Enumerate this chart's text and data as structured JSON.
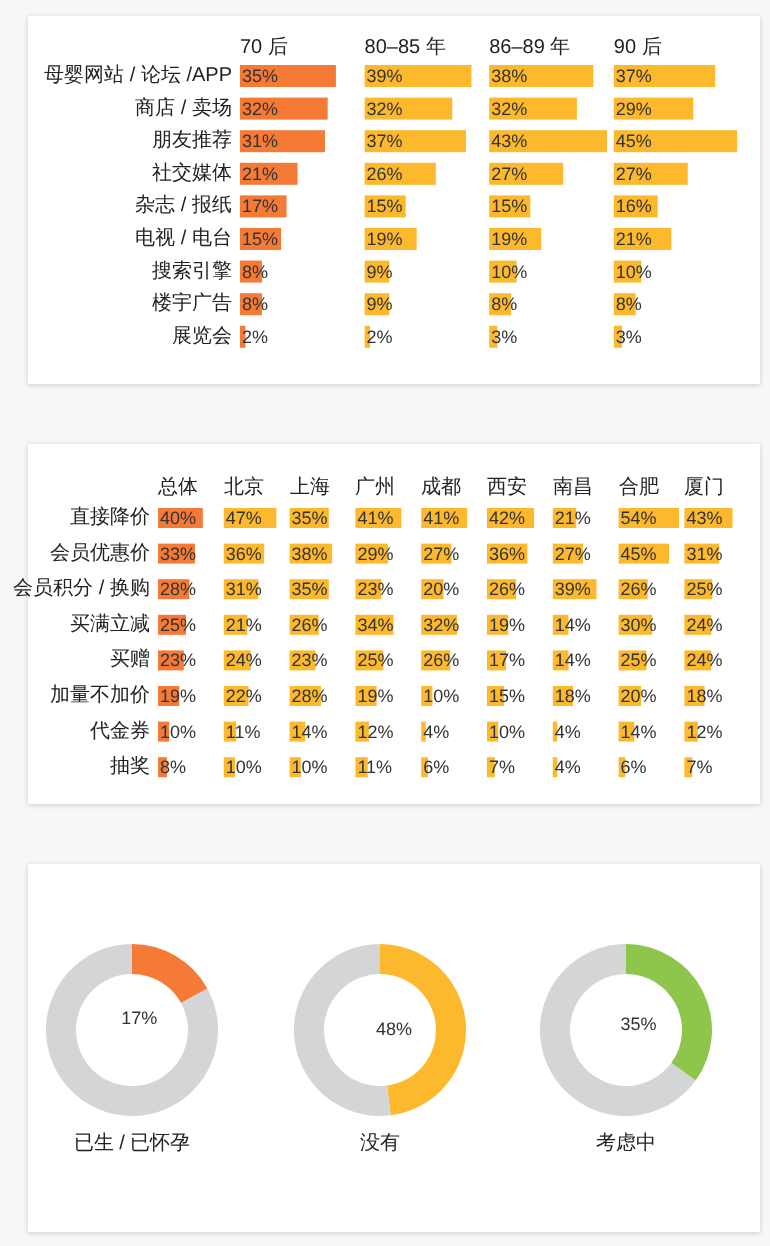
{
  "chart_data": [
    {
      "type": "bar",
      "orientation": "horizontal",
      "tick_labels": "y",
      "title": "70 后",
      "categories": [
        "母婴网站 / 论坛 /APP",
        "商店 / 卖场",
        "朋友推荐",
        "社交媒体",
        "杂志 / 报纸",
        "电视 / 电台",
        "搜索引擎",
        "楼宇广告",
        "展览会"
      ],
      "color": "#f47a35",
      "values": [
        35,
        32,
        31,
        21,
        17,
        15,
        8,
        8,
        2
      ],
      "value_labels": [
        "35%",
        "32%",
        "31%",
        "21%",
        "17%",
        "15%",
        "8%",
        "8%",
        "2%"
      ]
    },
    {
      "type": "bar",
      "orientation": "horizontal",
      "tick_labels": false,
      "title": "80–85 年",
      "categories": [
        null,
        null,
        null,
        null,
        null,
        null,
        null,
        null,
        null
      ],
      "color": "#fdb92e",
      "values": [
        39,
        32,
        37,
        26,
        15,
        19,
        9,
        9,
        2
      ],
      "value_labels": [
        "39%",
        "32%",
        "37%",
        "26%",
        "15%",
        "19%",
        "9%",
        "9%",
        "2%"
      ]
    },
    {
      "type": "bar",
      "orientation": "horizontal",
      "tick_labels": false,
      "title": "86–89 年",
      "categories": [
        null,
        null,
        null,
        null,
        null,
        null,
        null,
        null,
        null
      ],
      "color": "#fdb92e",
      "values": [
        38,
        32,
        43,
        27,
        15,
        19,
        10,
        8,
        3
      ],
      "value_labels": [
        "38%",
        "32%",
        "43%",
        "27%",
        "15%",
        "19%",
        "10%",
        "8%",
        "3%"
      ]
    },
    {
      "type": "bar",
      "orientation": "horizontal",
      "tick_labels": false,
      "title": "90 后",
      "categories": [
        null,
        null,
        null,
        null,
        null,
        null,
        null,
        null,
        null
      ],
      "color": "#fdb92e",
      "values": [
        37,
        29,
        45,
        27,
        16,
        21,
        10,
        8,
        3
      ],
      "value_labels": [
        "37%",
        "29%",
        "45%",
        "27%",
        "16%",
        "21%",
        "10%",
        "8%",
        "3%"
      ]
    },
    {
      "type": "bar",
      "orientation": "horizontal",
      "tick_labels": "y",
      "title": "总体",
      "categories": [
        "直接降价",
        "会员优惠价",
        "会员积分 / 换购",
        "买满立减",
        "买赠",
        "加量不加价",
        "代金券",
        "抽奖"
      ],
      "color": "#f47a35",
      "values": [
        40,
        33,
        28,
        25,
        23,
        19,
        10,
        8
      ],
      "value_labels": [
        "40%",
        "33%",
        "28%",
        "25%",
        "23%",
        "19%",
        "10%",
        "8%"
      ]
    },
    {
      "type": "bar",
      "orientation": "horizontal",
      "tick_labels": false,
      "title": "北京",
      "categories": [
        null,
        null,
        null,
        null,
        null,
        null,
        null,
        null
      ],
      "color": "#fdb92e",
      "values": [
        47,
        36,
        31,
        21,
        24,
        22,
        11,
        10
      ],
      "value_labels": [
        "47%",
        "36%",
        "31%",
        "21%",
        "24%",
        "22%",
        "11%",
        "10%"
      ]
    },
    {
      "type": "bar",
      "orientation": "horizontal",
      "tick_labels": false,
      "title": "上海",
      "categories": [
        null,
        null,
        null,
        null,
        null,
        null,
        null,
        null
      ],
      "color": "#fdb92e",
      "values": [
        35,
        38,
        35,
        26,
        23,
        28,
        14,
        10
      ],
      "value_labels": [
        "35%",
        "38%",
        "35%",
        "26%",
        "23%",
        "28%",
        "14%",
        "10%"
      ]
    },
    {
      "type": "bar",
      "orientation": "horizontal",
      "tick_labels": false,
      "title": "广州",
      "categories": [
        null,
        null,
        null,
        null,
        null,
        null,
        null,
        null
      ],
      "color": "#fdb92e",
      "values": [
        41,
        29,
        23,
        34,
        25,
        19,
        12,
        11
      ],
      "value_labels": [
        "41%",
        "29%",
        "23%",
        "34%",
        "25%",
        "19%",
        "12%",
        "11%"
      ]
    },
    {
      "type": "bar",
      "orientation": "horizontal",
      "tick_labels": false,
      "title": "成都",
      "categories": [
        null,
        null,
        null,
        null,
        null,
        null,
        null,
        null
      ],
      "color": "#fdb92e",
      "values": [
        41,
        27,
        20,
        32,
        26,
        10,
        4,
        6
      ],
      "value_labels": [
        "41%",
        "27%",
        "20%",
        "32%",
        "26%",
        "10%",
        "4%",
        "6%"
      ]
    },
    {
      "type": "bar",
      "orientation": "horizontal",
      "tick_labels": false,
      "title": "西安",
      "categories": [
        null,
        null,
        null,
        null,
        null,
        null,
        null,
        null
      ],
      "color": "#fdb92e",
      "values": [
        42,
        36,
        26,
        19,
        17,
        15,
        10,
        7
      ],
      "value_labels": [
        "42%",
        "36%",
        "26%",
        "19%",
        "17%",
        "15%",
        "10%",
        "7%"
      ]
    },
    {
      "type": "bar",
      "orientation": "horizontal",
      "tick_labels": false,
      "title": "南昌",
      "categories": [
        null,
        null,
        null,
        null,
        null,
        null,
        null,
        null
      ],
      "color": "#fdb92e",
      "values": [
        21,
        27,
        39,
        14,
        14,
        18,
        4,
        4
      ],
      "value_labels": [
        "21%",
        "27%",
        "39%",
        "14%",
        "14%",
        "18%",
        "4%",
        "4%"
      ]
    },
    {
      "type": "bar",
      "orientation": "horizontal",
      "tick_labels": false,
      "title": "合肥",
      "categories": [
        null,
        null,
        null,
        null,
        null,
        null,
        null,
        null
      ],
      "color": "#fdb92e",
      "values": [
        54,
        45,
        26,
        30,
        25,
        20,
        14,
        6
      ],
      "value_labels": [
        "54%",
        "45%",
        "26%",
        "30%",
        "25%",
        "20%",
        "14%",
        "6%"
      ]
    },
    {
      "type": "bar",
      "orientation": "horizontal",
      "tick_labels": false,
      "title": "厦门",
      "categories": [
        null,
        null,
        null,
        null,
        null,
        null,
        null,
        null
      ],
      "color": "#fdb92e",
      "values": [
        43,
        31,
        25,
        24,
        24,
        18,
        12,
        7
      ],
      "value_labels": [
        "43%",
        "31%",
        "25%",
        "24%",
        "24%",
        "18%",
        "12%",
        "7%"
      ]
    },
    {
      "type": "donut",
      "title": "已生 / 已怀孕",
      "categories": [
        null,
        null
      ],
      "values": [
        17,
        83
      ],
      "colors": [
        "#f47a35",
        "#d4d5d7"
      ],
      "value_labels": [
        "17%",
        null
      ]
    },
    {
      "type": "donut",
      "title": "没有",
      "categories": [
        null,
        null
      ],
      "values": [
        48,
        52
      ],
      "colors": [
        "#fdb92e",
        "#d4d5d7"
      ],
      "value_labels": [
        "48%",
        null
      ]
    },
    {
      "type": "donut",
      "title": "考虑中",
      "categories": [
        null,
        null
      ],
      "values": [
        35,
        65
      ],
      "colors": [
        "#8dc64a",
        "#d4d5d7"
      ],
      "value_labels": [
        "35%",
        null
      ]
    }
  ]
}
